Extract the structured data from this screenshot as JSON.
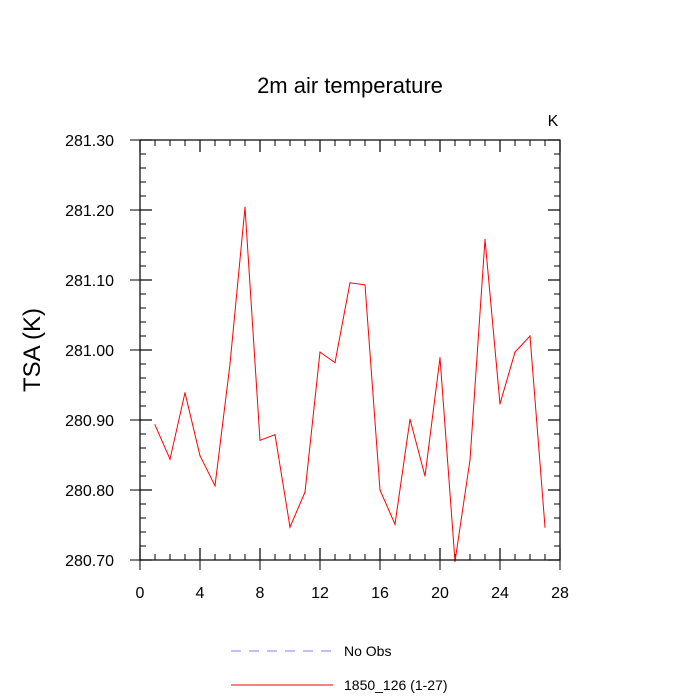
{
  "chart_data": {
    "type": "line",
    "title": "2m air temperature",
    "units_label": "K",
    "xlabel": "",
    "ylabel": "TSA  (K)",
    "xlim": [
      0,
      28
    ],
    "ylim": [
      280.7,
      281.3
    ],
    "x_ticks": [
      0,
      4,
      8,
      12,
      16,
      20,
      24,
      28
    ],
    "x_tick_labels": [
      "0",
      "4",
      "8",
      "12",
      "16",
      "20",
      "24",
      "28"
    ],
    "y_ticks": [
      280.7,
      280.8,
      280.9,
      281.0,
      281.1,
      281.2,
      281.3
    ],
    "y_tick_labels": [
      "280.70",
      "280.80",
      "280.90",
      "281.00",
      "281.10",
      "281.20",
      "281.30"
    ],
    "grid": false,
    "legend_position": "bottom",
    "series": [
      {
        "name": "No Obs",
        "color": "#8080ff",
        "dash": "dashed",
        "x": [],
        "values": []
      },
      {
        "name": "1850_126 (1-27)",
        "color": "#ff0000",
        "dash": "solid",
        "x": [
          1,
          2,
          3,
          4,
          5,
          6,
          7,
          8,
          9,
          10,
          11,
          12,
          13,
          14,
          15,
          16,
          17,
          18,
          19,
          20,
          21,
          22,
          23,
          24,
          25,
          26,
          27
        ],
        "values": [
          280.893,
          280.844,
          280.939,
          280.849,
          280.806,
          280.98,
          281.204,
          280.871,
          280.879,
          280.747,
          280.797,
          280.997,
          280.982,
          281.096,
          281.093,
          280.8,
          280.751,
          280.901,
          280.82,
          280.989,
          280.698,
          280.843,
          281.158,
          280.923,
          280.997,
          281.02,
          280.747
        ]
      }
    ]
  }
}
